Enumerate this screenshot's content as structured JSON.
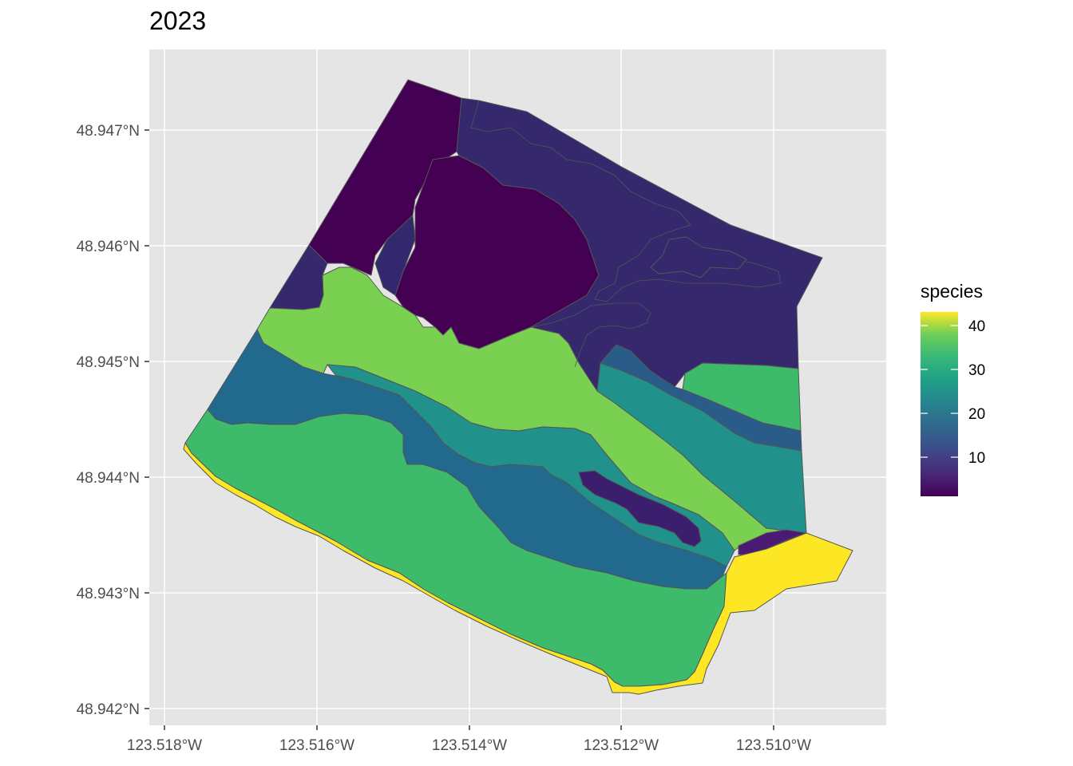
{
  "title": "2023",
  "chart_data": {
    "type": "map",
    "title": "2023",
    "xlabel": "",
    "ylabel": "",
    "x_ticks": [
      "123.518°W",
      "123.516°W",
      "123.514°W",
      "123.512°W",
      "123.510°W"
    ],
    "y_ticks": [
      "48.947°N",
      "48.946°N",
      "48.945°N",
      "48.944°N",
      "48.943°N",
      "48.942°N"
    ],
    "xlim": [
      -123.5183,
      -123.5089
    ],
    "ylim": [
      48.94195,
      48.94756
    ],
    "grid": true,
    "legend": {
      "title": "species",
      "placement": "right",
      "scale": "viridis",
      "range": [
        1,
        43
      ],
      "ticks": [
        "10",
        "20",
        "30",
        "40"
      ]
    },
    "zones": [
      {
        "name": "zone-north-west",
        "species": 1,
        "color": "#440154"
      },
      {
        "name": "zone-north-center",
        "species": 2,
        "color": "#440154"
      },
      {
        "name": "zone-north-east",
        "species": 8,
        "color": "#35286d"
      },
      {
        "name": "zone-west-corner",
        "species": 8,
        "color": "#35286d"
      },
      {
        "name": "zone-upper-band",
        "species": 38,
        "color": "#7ad151"
      },
      {
        "name": "zone-east-small",
        "species": 33,
        "color": "#3dbb6a"
      },
      {
        "name": "zone-mid-band",
        "species": 18,
        "color": "#22698e"
      },
      {
        "name": "zone-inner-band",
        "species": 25,
        "color": "#21918c"
      },
      {
        "name": "zone-east-mid",
        "species": 14,
        "color": "#2a5c8a"
      },
      {
        "name": "zone-mid-island",
        "species": 5,
        "color": "#3b1f6e"
      },
      {
        "name": "zone-lower-band",
        "species": 33,
        "color": "#3dbb6a"
      },
      {
        "name": "zone-south-edge",
        "species": 43,
        "color": "#fde725"
      }
    ]
  }
}
